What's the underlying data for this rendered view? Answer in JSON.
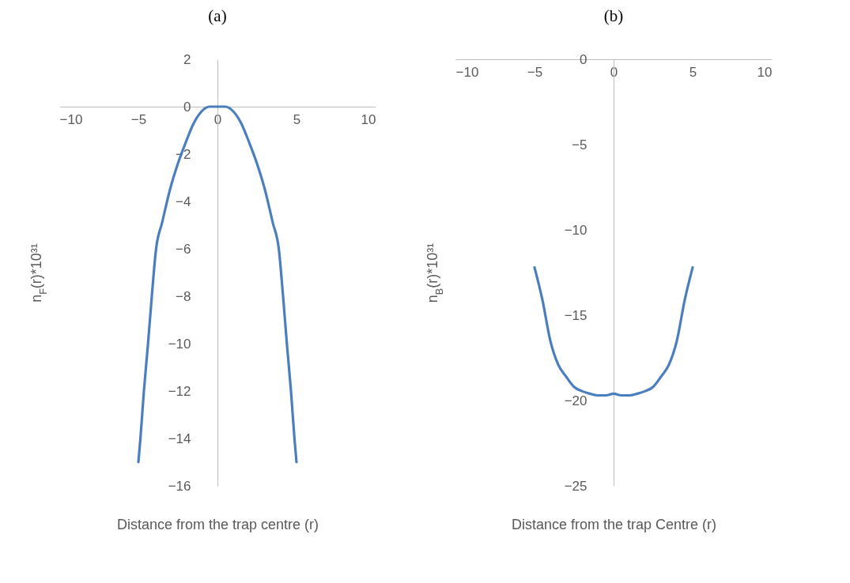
{
  "chart_data": [
    {
      "type": "line",
      "title": "(a)",
      "xlabel": "Distance from the trap centre (r)",
      "ylabel": "n$_{F}$(r)*10³¹",
      "xlim": [
        -10,
        10
      ],
      "ylim": [
        -16,
        2
      ],
      "xticks": [
        -10,
        -5,
        0,
        5,
        10
      ],
      "yticks": [
        -16,
        -14,
        -12,
        -10,
        -8,
        -6,
        -4,
        -2,
        0,
        2
      ],
      "series": [
        {
          "color": "#4a7ebf",
          "x": [
            -5,
            -4.87,
            -4.65,
            -4.39,
            -4.15,
            -3.88,
            -3.5,
            -3,
            -2.5,
            -2,
            -1.5,
            -1,
            -0.5,
            0,
            0.5,
            1,
            1.5,
            2,
            2.5,
            3,
            3.5,
            3.88,
            4.15,
            4.39,
            4.65,
            4.87,
            5
          ],
          "values": [
            -15,
            -14,
            -12,
            -10,
            -8,
            -6,
            -4.9,
            -3.5,
            -2.4,
            -1.5,
            -0.7,
            -0.2,
            0,
            0,
            0,
            -0.2,
            -0.7,
            -1.5,
            -2.4,
            -3.5,
            -4.9,
            -6,
            -8,
            -10,
            -12,
            -14,
            -15
          ]
        }
      ]
    },
    {
      "type": "line",
      "title": "(b)",
      "xlabel": "Distance from the trap Centre (r)",
      "ylabel": "n$_{B}$(r)*10³¹",
      "xlim": [
        -10,
        10
      ],
      "ylim": [
        -25,
        0
      ],
      "xticks": [
        -10,
        -5,
        0,
        5,
        10
      ],
      "yticks": [
        -25,
        -20,
        -15,
        -10,
        -5,
        0
      ],
      "series": [
        {
          "color": "#4a7ebf",
          "x": [
            -5,
            -4.5,
            -4,
            -3.5,
            -3,
            -2.5,
            -2,
            -1.5,
            -1,
            -0.5,
            0,
            0.5,
            1,
            1.5,
            2,
            2.5,
            3,
            3.5,
            4,
            4.5,
            5
          ],
          "values": [
            -12.2,
            -14.1,
            -16.5,
            -17.9,
            -18.6,
            -19.2,
            -19.45,
            -19.6,
            -19.7,
            -19.7,
            -19.6,
            -19.7,
            -19.7,
            -19.6,
            -19.45,
            -19.2,
            -18.6,
            -17.9,
            -16.5,
            -14.1,
            -12.2
          ]
        }
      ]
    }
  ]
}
